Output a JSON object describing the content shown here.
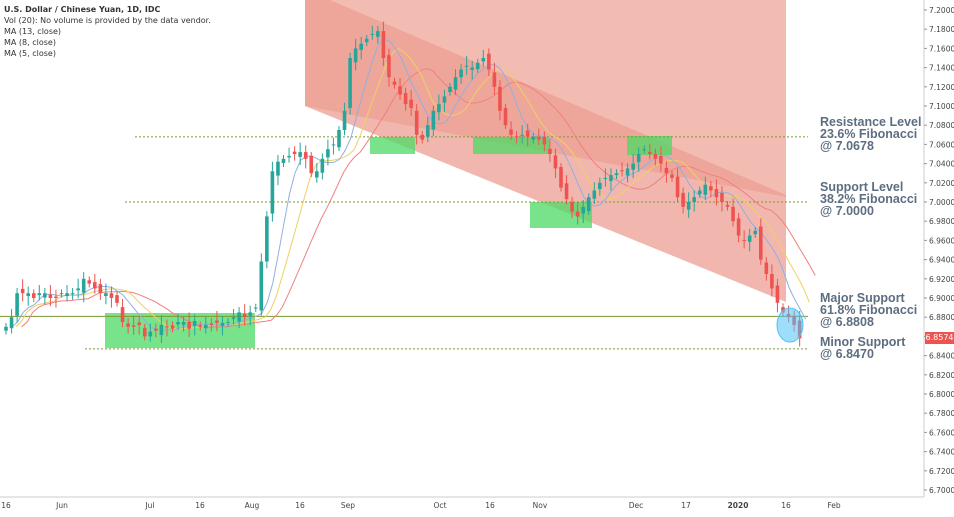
{
  "legend": {
    "title": "U.S. Dollar / Chinese Yuan, 1D, IDC",
    "vol": "Vol (20): No volume is provided by the data vendor.",
    "ma13": "MA (13, close)",
    "ma8": "MA (8, close)",
    "ma5": "MA (5, close)"
  },
  "annotations": {
    "resistance": [
      "Resistance Level",
      "23.6% Fibonacci",
      "@ 7.0678"
    ],
    "support": [
      "Support Level",
      "38.2% Fibonacci",
      "@ 7.0000"
    ],
    "major": [
      "Major Support",
      "61.8% Fibonacci",
      "@ 6.8808"
    ],
    "minor": [
      "Minor Support",
      "@ 6.8470"
    ]
  },
  "price_badge": "6.8574",
  "colors": {
    "up": "#26a69a",
    "down": "#ef5350",
    "channel_fill": "#ec9f93",
    "zone_fill": "#4cd964",
    "ma13": "#f08080",
    "ma8": "#f0d060",
    "ma5": "#90b0e0",
    "level_line": "#7a9a30",
    "annotation": "#5d6e80"
  },
  "chart_data": {
    "type": "candlestick",
    "title": "U.S. Dollar / Chinese Yuan, 1D, IDC",
    "x_ticks": [
      "16",
      "Jun",
      "Jul",
      "16",
      "Aug",
      "16",
      "Sep",
      "Oct",
      "16",
      "Nov",
      "Dec",
      "17",
      "2020",
      "16",
      "Feb"
    ],
    "y_ticks": [
      "7.2000",
      "7.1800",
      "7.1600",
      "7.1400",
      "7.1200",
      "7.1000",
      "7.0800",
      "7.0600",
      "7.0400",
      "7.0200",
      "7.0000",
      "6.9800",
      "6.9600",
      "6.9400",
      "6.9200",
      "6.9000",
      "6.8800",
      "6.8600",
      "6.8400",
      "6.8200",
      "6.8000",
      "6.7800",
      "6.7600",
      "6.7400",
      "6.7200",
      "6.7000"
    ],
    "ylim": [
      6.695,
      7.205
    ],
    "last_price": 6.8574,
    "levels": [
      {
        "name": "Resistance Level 23.6% Fibonacci",
        "value": 7.0678,
        "style": "dotted"
      },
      {
        "name": "Support Level 38.2% Fibonacci",
        "value": 7.0,
        "style": "dotted"
      },
      {
        "name": "Major Support 61.8% Fibonacci",
        "value": 6.8808,
        "style": "solid"
      },
      {
        "name": "Minor Support",
        "value": 6.847,
        "style": "dotted"
      }
    ],
    "closes": [
      6.87,
      6.88,
      6.905,
      6.905,
      6.905,
      6.9,
      6.905,
      6.905,
      6.9,
      6.9,
      6.905,
      6.905,
      6.905,
      6.91,
      6.92,
      6.915,
      6.91,
      6.905,
      6.905,
      6.9,
      6.895,
      6.875,
      6.87,
      6.87,
      6.872,
      6.86,
      6.865,
      6.866,
      6.872,
      6.87,
      6.868,
      6.875,
      6.875,
      6.868,
      6.876,
      6.87,
      6.872,
      6.872,
      6.874,
      6.874,
      6.875,
      6.88,
      6.885,
      6.88,
      6.885,
      6.89,
      6.938,
      6.985,
      7.032,
      7.042,
      7.045,
      7.048,
      7.05,
      7.052,
      7.045,
      7.03,
      7.032,
      7.045,
      7.055,
      7.06,
      7.075,
      7.095,
      7.15,
      7.16,
      7.165,
      7.17,
      7.175,
      7.178,
      7.15,
      7.13,
      7.122,
      7.112,
      7.102,
      7.098,
      7.07,
      7.065,
      7.08,
      7.095,
      7.102,
      7.11,
      7.12,
      7.13,
      7.138,
      7.142,
      7.14,
      7.145,
      7.15,
      7.138,
      7.12,
      7.095,
      7.08,
      7.07,
      7.068,
      7.07,
      7.068,
      7.068,
      7.065,
      7.06,
      7.05,
      7.035,
      7.015,
      7.003,
      6.99,
      6.985,
      6.995,
      7.005,
      7.012,
      7.02,
      7.025,
      7.028,
      7.03,
      7.032,
      7.035,
      7.04,
      7.05,
      7.055,
      7.05,
      7.045,
      7.04,
      7.03,
      7.025,
      7.005,
      6.995,
      7.0,
      7.005,
      7.012,
      7.018,
      7.012,
      7.005,
      7.0,
      6.995,
      6.98,
      6.965,
      6.96,
      6.965,
      6.97,
      6.94,
      6.925,
      6.91,
      6.895,
      6.885,
      6.88,
      6.872,
      6.858
    ]
  }
}
